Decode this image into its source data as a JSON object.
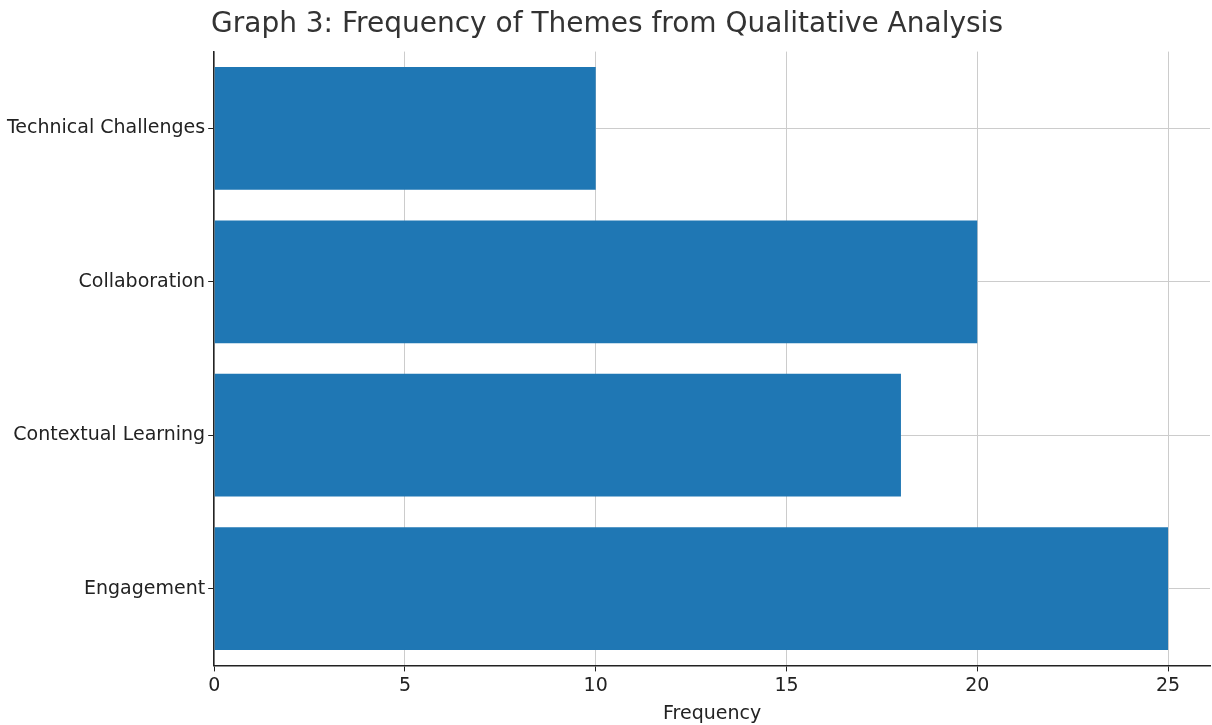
{
  "chart_data": {
    "type": "bar",
    "orientation": "horizontal",
    "title": "Graph 3: Frequency of Themes from Qualitative Analysis",
    "xlabel": "Frequency",
    "categories": [
      "Technical Challenges",
      "Collaboration",
      "Contextual Learning",
      "Engagement"
    ],
    "values": [
      10,
      20,
      18,
      25
    ],
    "color": "#1f77b4",
    "xlim": [
      0,
      26.1
    ],
    "xticks": [
      0,
      5,
      10,
      15,
      20,
      25
    ],
    "grid": true,
    "legend": false
  }
}
